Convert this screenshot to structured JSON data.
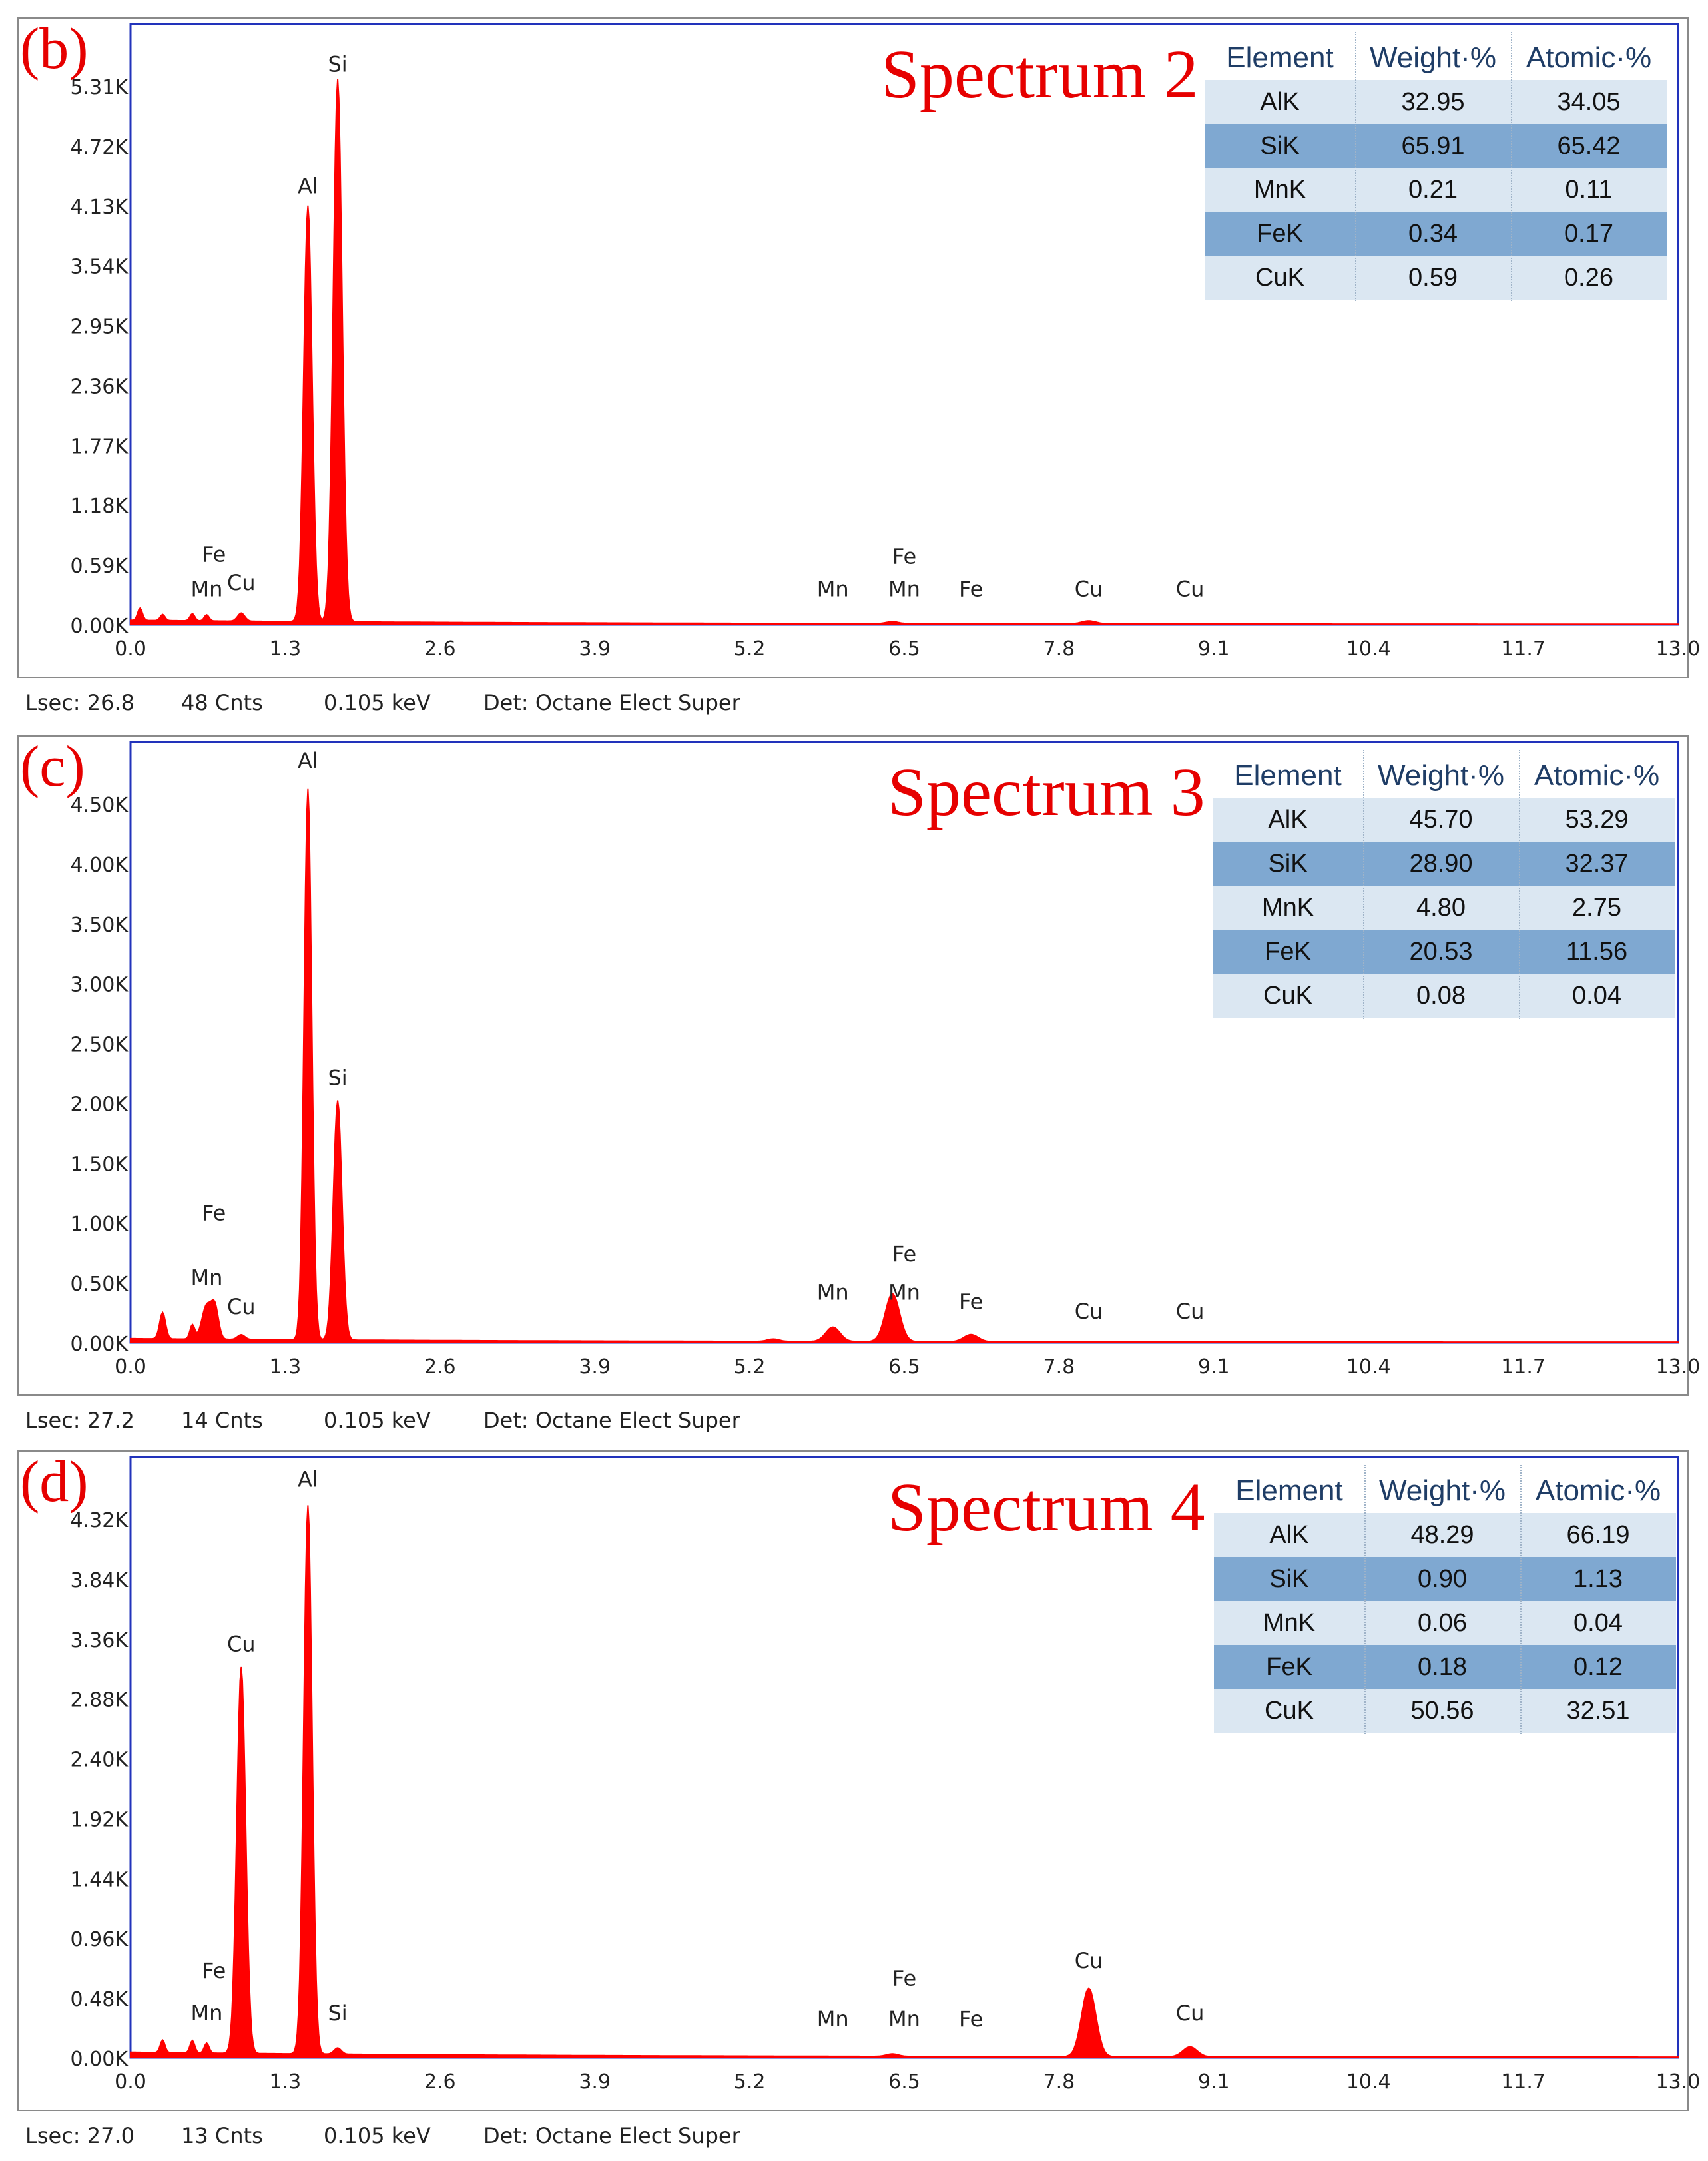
{
  "panels": [
    {
      "letter": "(b)",
      "title": "Spectrum 2",
      "footer": {
        "lsec": "Lsec: 26.8",
        "cnts": "48 Cnts",
        "kev": "0.105 keV",
        "det": "Det: Octane Elect Super"
      },
      "table": {
        "headers": [
          "Element",
          "Weight·%",
          "Atomic·%"
        ],
        "rows": [
          [
            "AlK",
            "32.95",
            "34.05"
          ],
          [
            "SiK",
            "65.91",
            "65.42"
          ],
          [
            "MnK",
            "0.21",
            "0.11"
          ],
          [
            "FeK",
            "0.34",
            "0.17"
          ],
          [
            "CuK",
            "0.59",
            "0.26"
          ]
        ]
      }
    },
    {
      "letter": "(c)",
      "title": "Spectrum 3",
      "footer": {
        "lsec": "Lsec: 27.2",
        "cnts": "14 Cnts",
        "kev": "0.105 keV",
        "det": "Det: Octane Elect Super"
      },
      "table": {
        "headers": [
          "Element",
          "Weight·%",
          "Atomic·%"
        ],
        "rows": [
          [
            "AlK",
            "45.70",
            "53.29"
          ],
          [
            "SiK",
            "28.90",
            "32.37"
          ],
          [
            "MnK",
            "4.80",
            "2.75"
          ],
          [
            "FeK",
            "20.53",
            "11.56"
          ],
          [
            "CuK",
            "0.08",
            "0.04"
          ]
        ]
      }
    },
    {
      "letter": "(d)",
      "title": "Spectrum 4",
      "footer": {
        "lsec": "Lsec: 27.0",
        "cnts": "13 Cnts",
        "kev": "0.105 keV",
        "det": "Det: Octane Elect Super"
      },
      "table": {
        "headers": [
          "Element",
          "Weight·%",
          "Atomic·%"
        ],
        "rows": [
          [
            "AlK",
            "48.29",
            "66.19"
          ],
          [
            "SiK",
            "0.90",
            "1.13"
          ],
          [
            "MnK",
            "0.06",
            "0.04"
          ],
          [
            "FeK",
            "0.18",
            "0.12"
          ],
          [
            "CuK",
            "50.56",
            "32.51"
          ]
        ]
      }
    }
  ],
  "chart_data": [
    {
      "type": "area",
      "title": "Spectrum 2",
      "xlim": [
        0,
        13.0
      ],
      "x_ticks": [
        "0.0",
        "1.3",
        "2.6",
        "3.9",
        "5.2",
        "6.5",
        "7.8",
        "9.1",
        "10.4",
        "11.7",
        "13.0"
      ],
      "y_tick_values": [
        0,
        0.59,
        1.18,
        1.77,
        2.36,
        2.95,
        3.54,
        4.13,
        4.72,
        5.31
      ],
      "y_ticks": [
        "0.00K",
        "0.59K",
        "1.18K",
        "1.77K",
        "2.36K",
        "2.95K",
        "3.54K",
        "4.13K",
        "4.72K",
        "5.31K"
      ],
      "series_color": "#ff0000",
      "peaks": [
        {
          "x": 0.08,
          "y": 0.12,
          "w": 0.02
        },
        {
          "x": 0.27,
          "y": 0.06,
          "w": 0.02
        },
        {
          "x": 0.52,
          "y": 0.07,
          "w": 0.02
        },
        {
          "x": 0.64,
          "y": 0.06,
          "w": 0.02
        },
        {
          "x": 0.93,
          "y": 0.08,
          "w": 0.03
        },
        {
          "x": 1.49,
          "y": 4.1,
          "w": 0.035
        },
        {
          "x": 1.74,
          "y": 5.35,
          "w": 0.037
        },
        {
          "x": 6.4,
          "y": 0.02,
          "w": 0.05
        },
        {
          "x": 8.05,
          "y": 0.03,
          "w": 0.06
        }
      ],
      "background": 0.04,
      "labels": [
        {
          "text": "Si",
          "x": 1.74,
          "y": 5.45
        },
        {
          "text": "Al",
          "x": 1.49,
          "y": 4.25
        },
        {
          "text": "Fe",
          "x": 0.7,
          "y": 0.62
        },
        {
          "text": "Mn",
          "x": 0.64,
          "y": 0.28
        },
        {
          "text": "Cu",
          "x": 0.93,
          "y": 0.34
        },
        {
          "text": "Mn",
          "x": 5.9,
          "y": 0.28
        },
        {
          "text": "Fe",
          "x": 6.5,
          "y": 0.6
        },
        {
          "text": "Mn",
          "x": 6.5,
          "y": 0.28
        },
        {
          "text": "Fe",
          "x": 7.06,
          "y": 0.28
        },
        {
          "text": "Cu",
          "x": 8.05,
          "y": 0.28
        },
        {
          "text": "Cu",
          "x": 8.9,
          "y": 0.28
        }
      ]
    },
    {
      "type": "area",
      "title": "Spectrum 3",
      "xlim": [
        0,
        13.0
      ],
      "x_ticks": [
        "0.0",
        "1.3",
        "2.6",
        "3.9",
        "5.2",
        "6.5",
        "7.8",
        "9.1",
        "10.4",
        "11.7",
        "13.0"
      ],
      "y_tick_values": [
        0,
        0.5,
        1.0,
        1.5,
        2.0,
        2.5,
        3.0,
        3.5,
        4.0,
        4.5
      ],
      "y_ticks": [
        "0.00K",
        "0.50K",
        "1.00K",
        "1.50K",
        "2.00K",
        "2.50K",
        "3.00K",
        "3.50K",
        "4.00K",
        "4.50K"
      ],
      "series_color": "#ff0000",
      "peaks": [
        {
          "x": 0.27,
          "y": 0.22,
          "w": 0.025
        },
        {
          "x": 0.52,
          "y": 0.12,
          "w": 0.02
        },
        {
          "x": 0.64,
          "y": 0.28,
          "w": 0.04
        },
        {
          "x": 0.71,
          "y": 0.25,
          "w": 0.03
        },
        {
          "x": 0.93,
          "y": 0.04,
          "w": 0.03
        },
        {
          "x": 1.49,
          "y": 4.6,
          "w": 0.032
        },
        {
          "x": 1.74,
          "y": 2.0,
          "w": 0.036
        },
        {
          "x": 5.4,
          "y": 0.02,
          "w": 0.05
        },
        {
          "x": 5.9,
          "y": 0.12,
          "w": 0.06
        },
        {
          "x": 6.4,
          "y": 0.4,
          "w": 0.06
        },
        {
          "x": 7.06,
          "y": 0.06,
          "w": 0.06
        }
      ],
      "background": 0.03,
      "labels": [
        {
          "text": "Al",
          "x": 1.49,
          "y": 4.8
        },
        {
          "text": "Si",
          "x": 1.74,
          "y": 2.15
        },
        {
          "text": "Fe",
          "x": 0.7,
          "y": 1.02
        },
        {
          "text": "Mn",
          "x": 0.64,
          "y": 0.48
        },
        {
          "text": "Cu",
          "x": 0.93,
          "y": 0.24
        },
        {
          "text": "Mn",
          "x": 5.9,
          "y": 0.36
        },
        {
          "text": "Fe",
          "x": 6.5,
          "y": 0.68
        },
        {
          "text": "Mn",
          "x": 6.5,
          "y": 0.36
        },
        {
          "text": "Fe",
          "x": 7.06,
          "y": 0.28
        },
        {
          "text": "Cu",
          "x": 8.05,
          "y": 0.2
        },
        {
          "text": "Cu",
          "x": 8.9,
          "y": 0.2
        }
      ]
    },
    {
      "type": "area",
      "title": "Spectrum 4",
      "xlim": [
        0,
        13.0
      ],
      "x_ticks": [
        "0.0",
        "1.3",
        "2.6",
        "3.9",
        "5.2",
        "6.5",
        "7.8",
        "9.1",
        "10.4",
        "11.7",
        "13.0"
      ],
      "y_tick_values": [
        0,
        0.48,
        0.96,
        1.44,
        1.92,
        2.4,
        2.88,
        3.36,
        3.84,
        4.32
      ],
      "y_ticks": [
        "0.00K",
        "0.48K",
        "0.96K",
        "1.44K",
        "1.92K",
        "2.40K",
        "2.88K",
        "3.36K",
        "3.84K",
        "4.32K"
      ],
      "series_color": "#ff0000",
      "peaks": [
        {
          "x": 0.27,
          "y": 0.1,
          "w": 0.02
        },
        {
          "x": 0.52,
          "y": 0.1,
          "w": 0.02
        },
        {
          "x": 0.64,
          "y": 0.08,
          "w": 0.02
        },
        {
          "x": 0.93,
          "y": 3.1,
          "w": 0.037
        },
        {
          "x": 1.49,
          "y": 4.4,
          "w": 0.035
        },
        {
          "x": 1.74,
          "y": 0.05,
          "w": 0.03
        },
        {
          "x": 6.4,
          "y": 0.02,
          "w": 0.05
        },
        {
          "x": 8.05,
          "y": 0.55,
          "w": 0.06
        },
        {
          "x": 8.9,
          "y": 0.08,
          "w": 0.06
        }
      ],
      "background": 0.04,
      "labels": [
        {
          "text": "Al",
          "x": 1.49,
          "y": 4.58
        },
        {
          "text": "Cu",
          "x": 0.93,
          "y": 3.26
        },
        {
          "text": "Fe",
          "x": 0.7,
          "y": 0.64
        },
        {
          "text": "Mn",
          "x": 0.64,
          "y": 0.3
        },
        {
          "text": "Si",
          "x": 1.74,
          "y": 0.3
        },
        {
          "text": "Mn",
          "x": 5.9,
          "y": 0.25
        },
        {
          "text": "Fe",
          "x": 6.5,
          "y": 0.58
        },
        {
          "text": "Mn",
          "x": 6.5,
          "y": 0.25
        },
        {
          "text": "Fe",
          "x": 7.06,
          "y": 0.25
        },
        {
          "text": "Cu",
          "x": 8.05,
          "y": 0.72
        },
        {
          "text": "Cu",
          "x": 8.9,
          "y": 0.3
        }
      ]
    }
  ]
}
